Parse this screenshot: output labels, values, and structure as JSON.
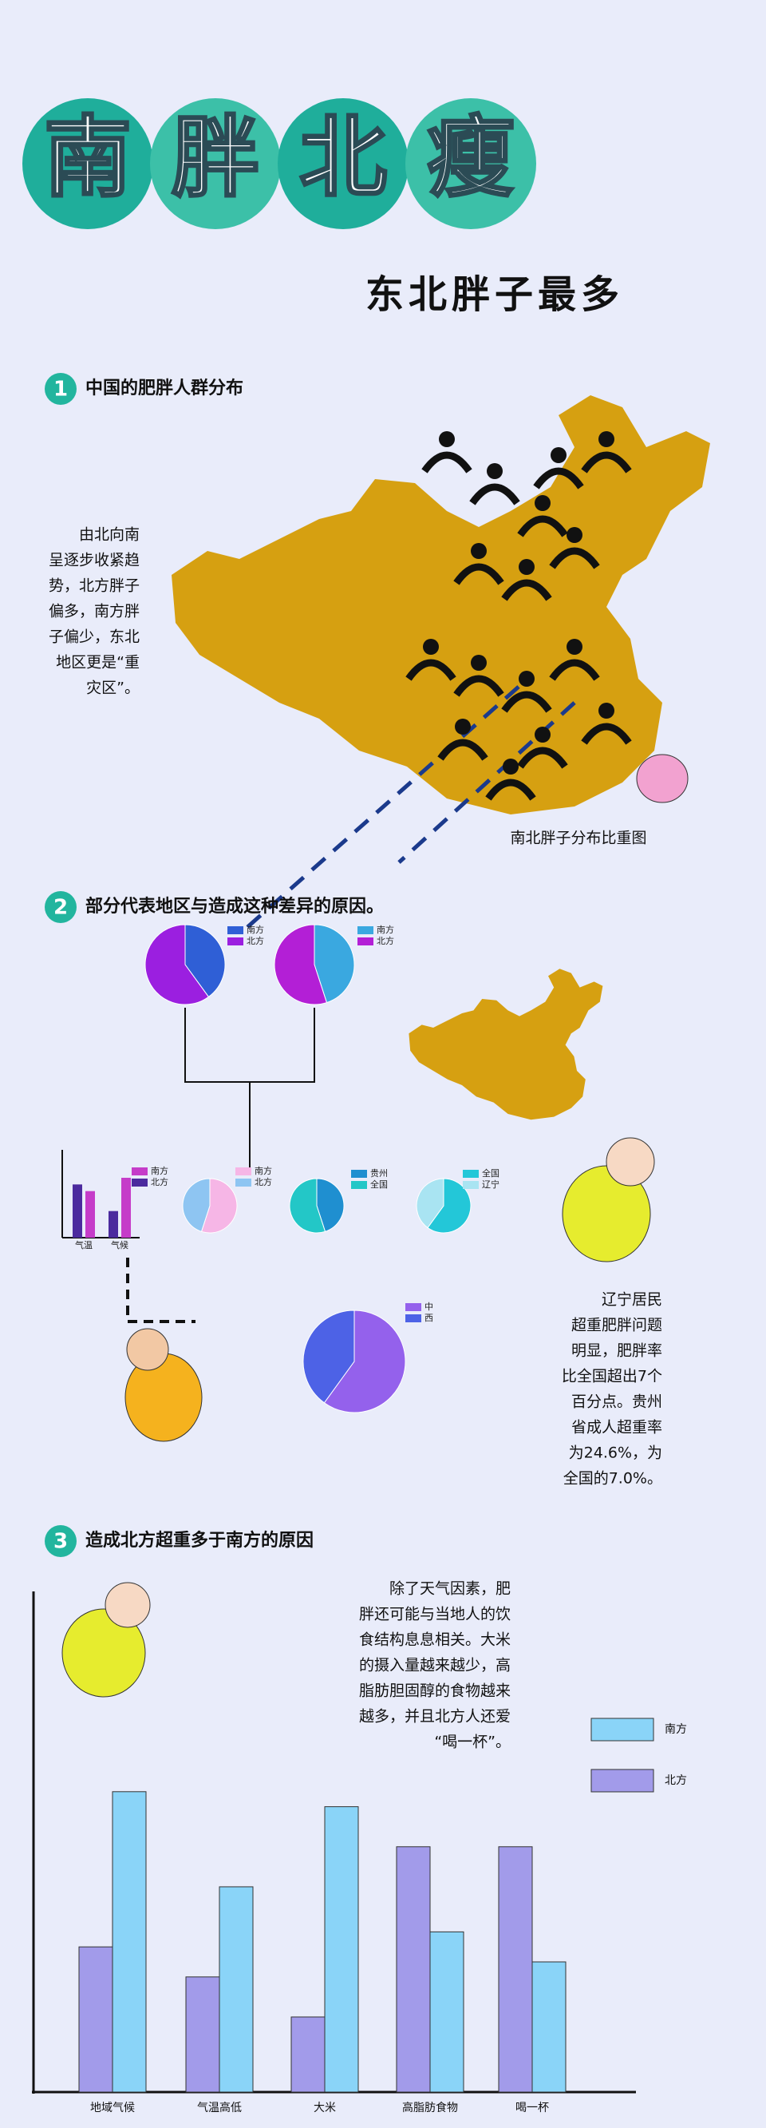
{
  "header": {
    "title_chars": [
      "南",
      "胖",
      "北",
      "瘦"
    ],
    "subtitle": "东北胖子最多"
  },
  "section1": {
    "number": "1",
    "heading": "中国的肥胖人群分布",
    "text_lines": [
      "由北向南",
      "呈逐步收紧趋",
      "势，北方胖子",
      "偏多，南方胖",
      "子偏少，东北",
      "地区更是“重",
      "灾区”。"
    ],
    "map_caption": "南北胖子分布比重图"
  },
  "section2": {
    "number": "2",
    "heading": "部分代表地区与造成这种差异的原因。",
    "top_pies": [
      {
        "legend": [
          "南方",
          "北方"
        ],
        "values": [
          40,
          60
        ],
        "colors": [
          "#2f5fd6",
          "#9b1fe0"
        ]
      },
      {
        "legend": [
          "南方",
          "北方"
        ],
        "values": [
          45,
          55
        ],
        "colors": [
          "#3aa8e0",
          "#b31fd6"
        ]
      }
    ],
    "small_bar": {
      "categories": [
        "气温",
        "气候"
      ],
      "series": [
        {
          "name": "南方",
          "color": "#c53cc9",
          "values": [
            35,
            45
          ]
        },
        {
          "name": "北方",
          "color": "#4b2a9e",
          "values": [
            40,
            20
          ]
        }
      ],
      "ylim": [
        0,
        60
      ]
    },
    "mid_pies": [
      {
        "legend": [
          "南方",
          "北方"
        ],
        "values": [
          55,
          45
        ],
        "colors": [
          "#f6b6e6",
          "#8ec5f2"
        ]
      },
      {
        "legend": [
          "贵州",
          "全国"
        ],
        "values": [
          45,
          55
        ],
        "colors": [
          "#1f8fd0",
          "#23c7c7"
        ]
      },
      {
        "legend": [
          "全国",
          "辽宁"
        ],
        "values": [
          60,
          40
        ],
        "colors": [
          "#23c7d8",
          "#a9e4f2"
        ]
      }
    ],
    "big_pie": {
      "legend": [
        "中",
        "西"
      ],
      "values": [
        60,
        40
      ],
      "colors": [
        "#9461ec",
        "#4d62e6"
      ]
    },
    "text_lines": [
      "辽宁居民",
      "超重肥胖问题",
      "明显，肥胖率",
      "比全国超出7个",
      "百分点。贵州",
      "省成人超重率",
      "为24.6%，为",
      "全国的7.0%。"
    ]
  },
  "section3": {
    "number": "3",
    "heading": "造成北方超重多于南方的原因",
    "text_lines": [
      "除了天气因素，肥",
      "胖还可能与当地人的饮",
      "食结构息息相关。大米",
      "的摄入量越来越少，高",
      "脂肪胆固醇的食物越来",
      "越多，并且北方人还爱",
      "“喝一杯”。"
    ],
    "chart_data": {
      "type": "bar",
      "categories": [
        "地域气候",
        "气温高低",
        "大米",
        "高脂肪食物",
        "喝一杯"
      ],
      "series": [
        {
          "name": "北方",
          "color": "#a29bea",
          "values": [
            29,
            23,
            15,
            49,
            49
          ]
        },
        {
          "name": "南方",
          "color": "#8ad4f8",
          "values": [
            60,
            41,
            57,
            32,
            26
          ]
        }
      ],
      "ylim": [
        0,
        100
      ]
    }
  }
}
